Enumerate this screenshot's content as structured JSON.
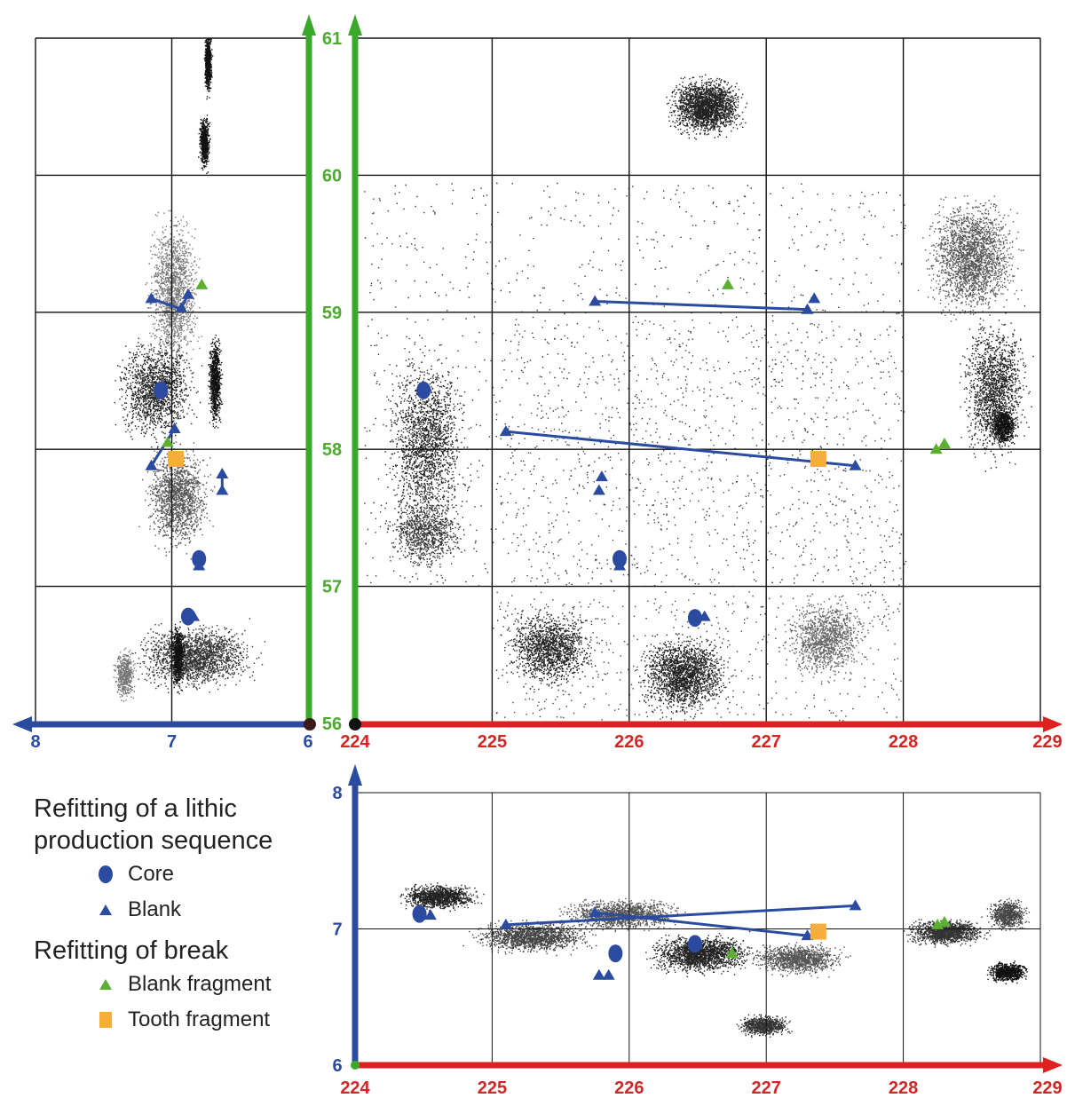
{
  "colors": {
    "core_blank": "#2b4ba0",
    "blank_fragment": "#5cb030",
    "tooth_fragment": "#f5ad3c",
    "x_axis": "#e02020",
    "y_axis": "#3aa82a",
    "z_axis": "#2b4ba0",
    "x_label": "#d42525",
    "y_label": "#4caa2f",
    "z_label": "#2b4ba0"
  },
  "legend": {
    "group1_title": "Refitting of a lithic production sequence",
    "core_label": "Core",
    "blank_label": "Blank",
    "group2_title": "Refitting of break",
    "blank_fragment_label": "Blank fragment",
    "tooth_fragment_label": "Tooth fragment"
  },
  "chart_data": [
    {
      "type": "scatter",
      "view": "plan",
      "title": "",
      "x_ticks": [
        "224",
        "225",
        "226",
        "227",
        "228",
        "229"
      ],
      "y_ticks": [
        "56",
        "57",
        "58",
        "59",
        "60",
        "61"
      ],
      "xlim": [
        224,
        229
      ],
      "ylim": [
        56,
        61
      ],
      "grid": true,
      "refits_sequence": [
        {
          "from": [
            225.75,
            59.08
          ],
          "to": [
            227.3,
            59.02
          ]
        },
        {
          "from": [
            225.1,
            58.13
          ],
          "to": [
            227.65,
            57.88
          ]
        }
      ],
      "cores": [
        [
          224.5,
          58.43
        ],
        [
          225.93,
          57.2
        ],
        [
          226.48,
          56.77
        ]
      ],
      "blanks": [
        [
          225.75,
          59.08
        ],
        [
          227.3,
          59.02
        ],
        [
          227.35,
          59.1
        ],
        [
          225.1,
          58.13
        ],
        [
          227.65,
          57.88
        ],
        [
          225.8,
          57.8
        ],
        [
          225.78,
          57.7
        ],
        [
          225.93,
          57.15
        ],
        [
          226.55,
          56.78
        ]
      ],
      "blank_fragments": [
        [
          226.72,
          59.2
        ],
        [
          228.3,
          58.04
        ],
        [
          228.24,
          58.0
        ]
      ],
      "tooth_fragments": [
        [
          227.38,
          57.93
        ]
      ]
    },
    {
      "type": "scatter",
      "view": "section",
      "title": "",
      "x_ticks": [
        "8",
        "7",
        "6"
      ],
      "y_ticks": [
        "56",
        "57",
        "58",
        "59",
        "60",
        "61"
      ],
      "xlim": [
        8,
        6
      ],
      "ylim": [
        56,
        61
      ],
      "grid": true,
      "refits_sequence": [
        {
          "from": [
            7.15,
            59.1
          ],
          "to": [
            6.95,
            59.03
          ]
        },
        {
          "from": [
            6.93,
            59.03
          ],
          "to": [
            6.88,
            59.13
          ]
        },
        {
          "from": [
            7.15,
            57.88
          ],
          "to": [
            6.98,
            58.15
          ]
        },
        {
          "from": [
            6.63,
            57.82
          ],
          "to": [
            6.63,
            57.7
          ]
        }
      ],
      "cores": [
        [
          7.08,
          58.43
        ],
        [
          6.8,
          57.2
        ],
        [
          6.88,
          56.78
        ]
      ],
      "blanks": [
        [
          7.15,
          59.1
        ],
        [
          6.93,
          59.03
        ],
        [
          6.88,
          59.13
        ],
        [
          7.15,
          57.88
        ],
        [
          6.98,
          58.15
        ],
        [
          6.63,
          57.82
        ],
        [
          6.63,
          57.7
        ],
        [
          6.8,
          57.15
        ],
        [
          6.84,
          56.78
        ]
      ],
      "blank_fragments": [
        [
          6.78,
          59.2
        ],
        [
          7.03,
          58.05
        ]
      ],
      "tooth_fragments": [
        [
          6.97,
          57.93
        ]
      ]
    },
    {
      "type": "scatter",
      "view": "elevation",
      "title": "",
      "x_ticks": [
        "224",
        "225",
        "226",
        "227",
        "228",
        "229"
      ],
      "y_ticks": [
        "6",
        "7",
        "8"
      ],
      "xlim": [
        224,
        229
      ],
      "ylim": [
        6,
        8
      ],
      "grid": true,
      "refits_sequence": [
        {
          "from": [
            225.1,
            7.03
          ],
          "to": [
            227.65,
            7.17
          ]
        },
        {
          "from": [
            225.75,
            7.12
          ],
          "to": [
            227.3,
            6.95
          ]
        }
      ],
      "cores": [
        [
          224.47,
          7.11
        ],
        [
          225.9,
          6.82
        ],
        [
          226.48,
          6.89
        ]
      ],
      "blanks": [
        [
          225.1,
          7.03
        ],
        [
          227.65,
          7.17
        ],
        [
          225.75,
          7.12
        ],
        [
          227.3,
          6.95
        ],
        [
          225.78,
          6.66
        ],
        [
          225.85,
          6.66
        ],
        [
          224.55,
          7.1
        ]
      ],
      "blank_fragments": [
        [
          226.75,
          6.82
        ],
        [
          228.25,
          7.03
        ],
        [
          228.3,
          7.05
        ]
      ],
      "tooth_fragments": [
        [
          227.38,
          6.98
        ]
      ]
    }
  ]
}
